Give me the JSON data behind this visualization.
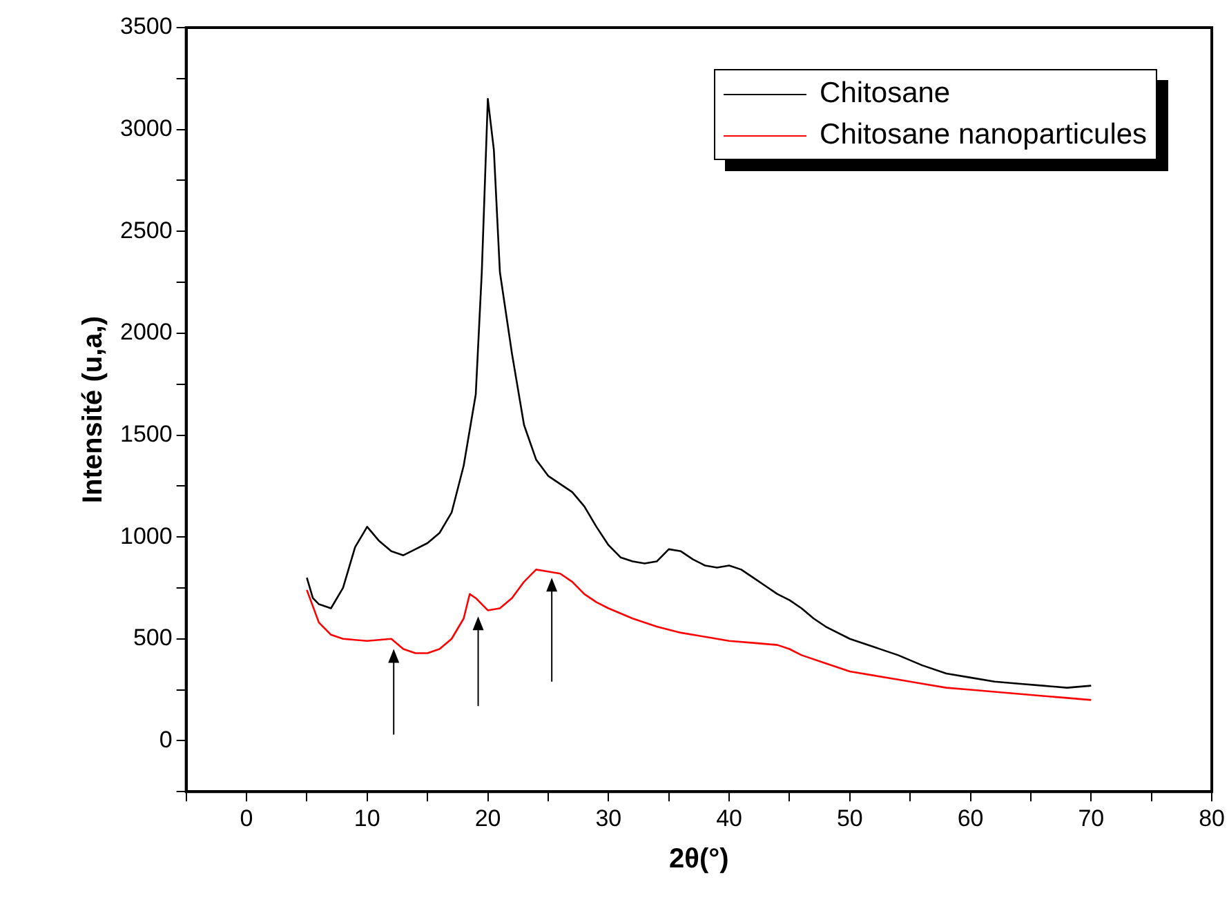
{
  "chart_data": {
    "type": "line",
    "xlabel": "2θ(°)",
    "ylabel": "Intensité (u,a,)",
    "xlim": [
      -5,
      80
    ],
    "xticks": [
      {
        "value": -5,
        "label": null
      },
      0,
      {
        "value": 5,
        "label": null
      },
      10,
      {
        "value": 15,
        "label": null
      },
      20,
      {
        "value": 25,
        "label": null
      },
      30,
      {
        "value": 35,
        "label": null
      },
      40,
      {
        "value": 45,
        "label": null
      },
      50,
      {
        "value": 55,
        "label": null
      },
      60,
      {
        "value": 65,
        "label": null
      },
      70,
      {
        "value": 75,
        "label": null
      },
      80
    ],
    "ylim": [
      -250,
      3500
    ],
    "yticks": [
      {
        "value": -250,
        "label": null
      },
      0,
      {
        "value": 250,
        "label": null
      },
      500,
      {
        "value": 750,
        "label": null
      },
      1000,
      {
        "value": 1250,
        "label": null
      },
      1500,
      {
        "value": 1750,
        "label": null
      },
      2000,
      {
        "value": 2250,
        "label": null
      },
      2500,
      {
        "value": 2750,
        "label": null
      },
      3000,
      {
        "value": 3250,
        "label": null
      },
      3500
    ],
    "grid": false,
    "legend": "top right",
    "marker": "none",
    "line_style": "solid",
    "series": [
      {
        "name": "Chitosane",
        "color": "#000000",
        "x": [
          5,
          5.5,
          6,
          7,
          8,
          9,
          10,
          11,
          12,
          13,
          14,
          15,
          16,
          17,
          18,
          19,
          19.5,
          20,
          20.5,
          21,
          22,
          23,
          24,
          25,
          26,
          27,
          28,
          29,
          30,
          31,
          32,
          33,
          34,
          35,
          36,
          37,
          38,
          39,
          40,
          41,
          42,
          43,
          44,
          45,
          46,
          47,
          48,
          50,
          52,
          54,
          56,
          58,
          60,
          62,
          64,
          66,
          68,
          70
        ],
        "values": [
          800,
          700,
          670,
          650,
          750,
          950,
          1050,
          980,
          930,
          910,
          940,
          970,
          1020,
          1120,
          1350,
          1700,
          2300,
          3150,
          2900,
          2300,
          1900,
          1550,
          1380,
          1300,
          1260,
          1220,
          1150,
          1050,
          960,
          900,
          880,
          870,
          880,
          940,
          930,
          890,
          860,
          850,
          860,
          840,
          800,
          760,
          720,
          690,
          650,
          600,
          560,
          500,
          460,
          420,
          370,
          330,
          310,
          290,
          280,
          270,
          260,
          270
        ]
      },
      {
        "name": "Chitosane nanoparticules",
        "color": "#ff0000",
        "x": [
          5,
          6,
          7,
          8,
          10,
          12,
          13,
          14,
          15,
          16,
          17,
          18,
          18.5,
          19,
          20,
          21,
          22,
          23,
          24,
          25,
          26,
          27,
          28,
          29,
          30,
          32,
          34,
          36,
          38,
          40,
          42,
          44,
          45,
          46,
          48,
          50,
          52,
          54,
          56,
          58,
          60,
          62,
          64,
          66,
          68,
          70
        ],
        "values": [
          740,
          580,
          520,
          500,
          490,
          500,
          450,
          430,
          430,
          450,
          500,
          600,
          720,
          700,
          640,
          650,
          700,
          780,
          840,
          830,
          820,
          780,
          720,
          680,
          650,
          600,
          560,
          530,
          510,
          490,
          480,
          470,
          450,
          420,
          380,
          340,
          320,
          300,
          280,
          260,
          250,
          240,
          230,
          220,
          210,
          200
        ]
      }
    ]
  }
}
